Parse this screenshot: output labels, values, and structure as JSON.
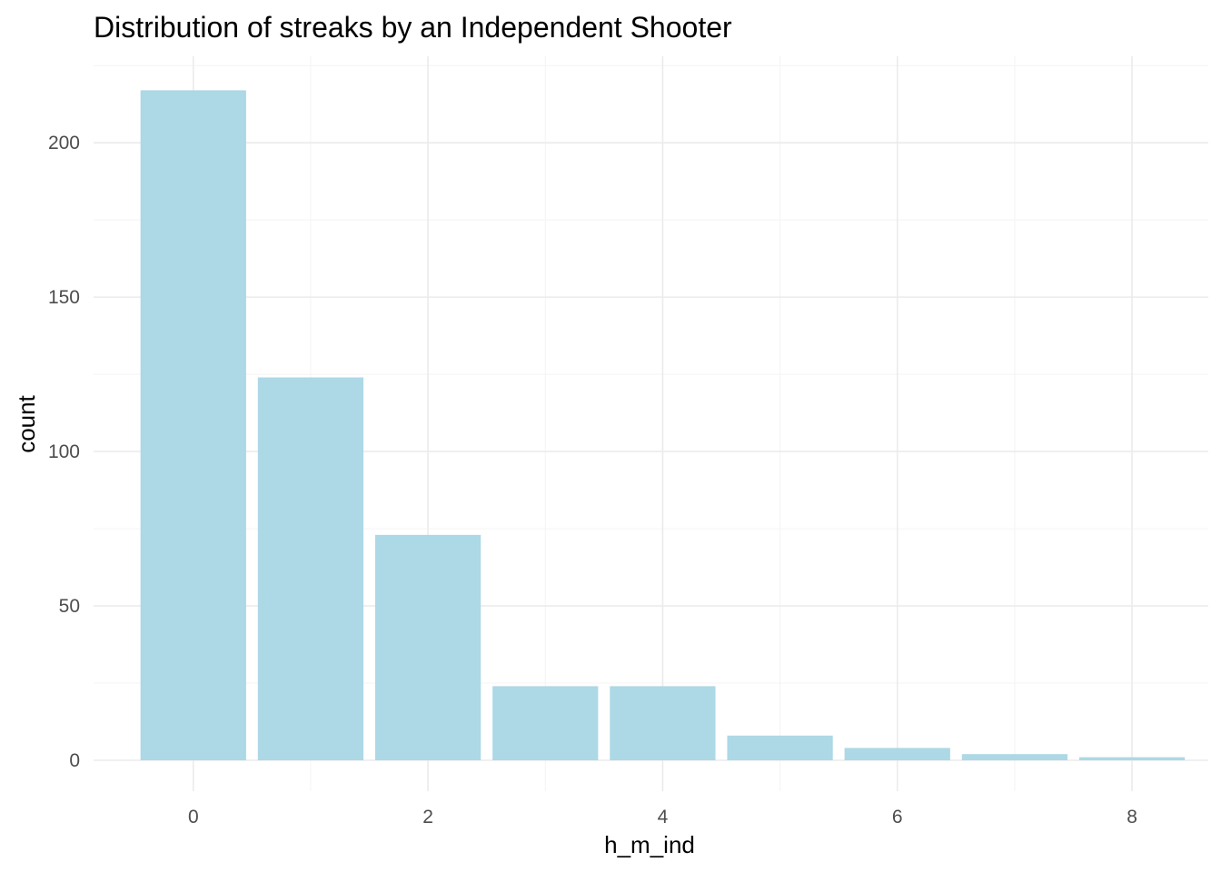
{
  "chart_data": {
    "type": "bar",
    "title": "Distribution of streaks by an Independent Shooter",
    "xlabel": "h_m_ind",
    "ylabel": "count",
    "x": [
      0,
      1,
      2,
      3,
      4,
      5,
      6,
      7,
      8
    ],
    "values": [
      217,
      124,
      73,
      24,
      24,
      8,
      4,
      2,
      1
    ],
    "xlim": [
      -0.85,
      8.65
    ],
    "ylim": [
      -10,
      228
    ],
    "x_ticks": [
      0,
      2,
      4,
      6,
      8
    ],
    "y_ticks": [
      0,
      50,
      100,
      150,
      200
    ],
    "x_minor_ticks": [
      1,
      3,
      5,
      7
    ],
    "y_minor_ticks": [
      25,
      75,
      125,
      175,
      225
    ],
    "bar_color": "#add8e6",
    "grid": true,
    "legend": "none"
  }
}
